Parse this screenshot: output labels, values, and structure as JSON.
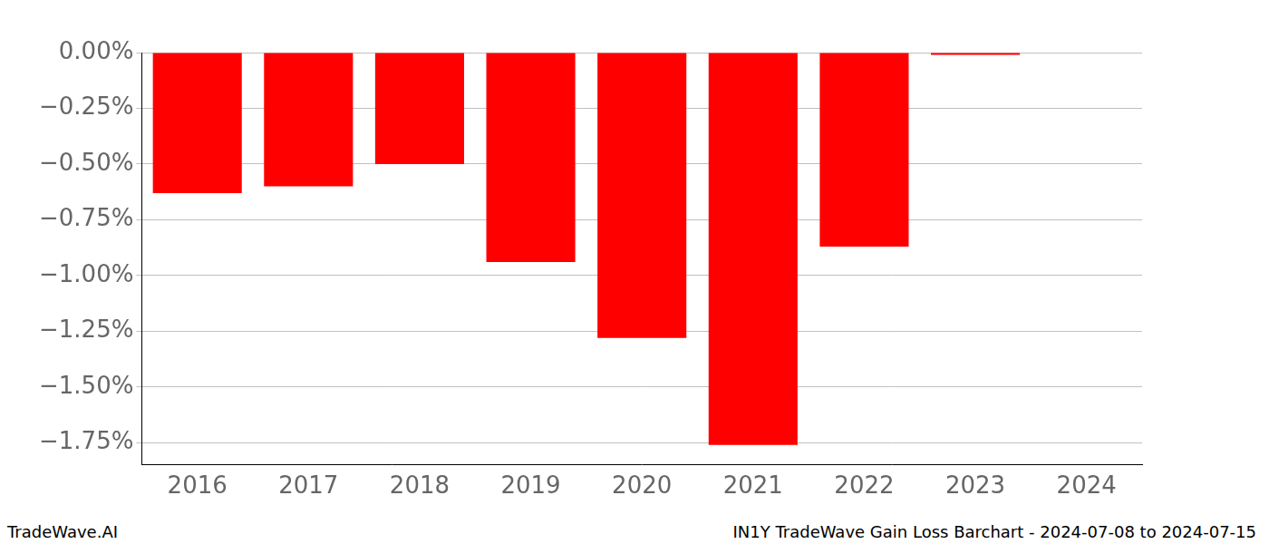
{
  "chart_data": {
    "type": "bar",
    "annotations": [
      "TradeWave.AI",
      "IN1Y TradeWave Gain Loss Barchart - 2024-07-08 to 2024-07-15"
    ],
    "categories": [
      "2016",
      "2017",
      "2018",
      "2019",
      "2020",
      "2021",
      "2022",
      "2023",
      "2024"
    ],
    "values": [
      -0.63,
      -0.6,
      -0.5,
      -0.94,
      -1.28,
      -1.76,
      -0.87,
      -0.01,
      null
    ],
    "color": "#ff0000",
    "ylim": [
      -1.85,
      0
    ],
    "yticks": [
      {
        "value": 0,
        "label": "0.00%"
      },
      {
        "value": -0.25,
        "label": "−0.25%"
      },
      {
        "value": -0.5,
        "label": "−0.50%"
      },
      {
        "value": -0.75,
        "label": "−0.75%"
      },
      {
        "value": -1,
        "label": "−1.00%"
      },
      {
        "value": -1.25,
        "label": "−1.25%"
      },
      {
        "value": -1.5,
        "label": "−1.50%"
      },
      {
        "value": -1.75,
        "label": "−1.75%"
      }
    ],
    "grid": true
  }
}
